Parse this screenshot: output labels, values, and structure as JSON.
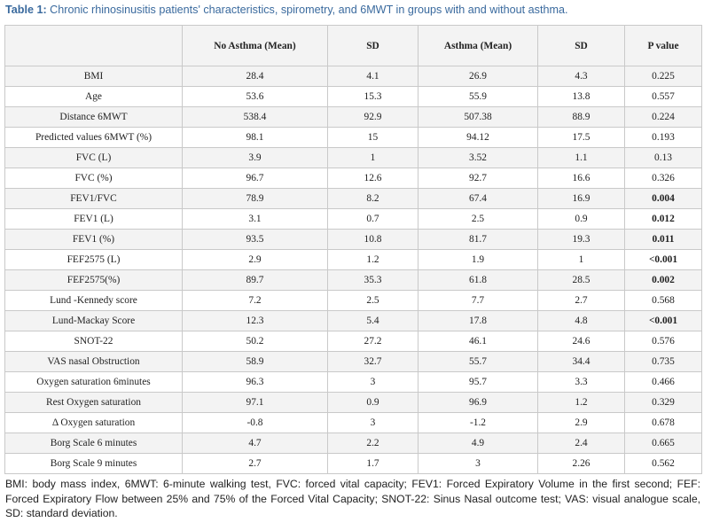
{
  "caption": {
    "label": "Table 1:",
    "text": "Chronic rhinosinusitis patients' characteristics, spirometry, and 6MWT in groups with and without asthma."
  },
  "table": {
    "headers": [
      "",
      "No Asthma (Mean)",
      "SD",
      "Asthma (Mean)",
      "SD",
      "P value"
    ],
    "rows": [
      {
        "cells": [
          "BMI",
          "28.4",
          "4.1",
          "26.9",
          "4.3",
          "0.225"
        ],
        "bold_p": false
      },
      {
        "cells": [
          "Age",
          "53.6",
          "15.3",
          "55.9",
          "13.8",
          "0.557"
        ],
        "bold_p": false
      },
      {
        "cells": [
          "Distance 6MWT",
          "538.4",
          "92.9",
          "507.38",
          "88.9",
          "0.224"
        ],
        "bold_p": false
      },
      {
        "cells": [
          "Predicted values 6MWT (%)",
          "98.1",
          "15",
          "94.12",
          "17.5",
          "0.193"
        ],
        "bold_p": false
      },
      {
        "cells": [
          "FVC (L)",
          "3.9",
          "1",
          "3.52",
          "1.1",
          "0.13"
        ],
        "bold_p": false
      },
      {
        "cells": [
          "FVC (%)",
          "96.7",
          "12.6",
          "92.7",
          "16.6",
          "0.326"
        ],
        "bold_p": false
      },
      {
        "cells": [
          "FEV1/FVC",
          "78.9",
          "8.2",
          "67.4",
          "16.9",
          "0.004"
        ],
        "bold_p": true
      },
      {
        "cells": [
          "FEV1 (L)",
          "3.1",
          "0.7",
          "2.5",
          "0.9",
          "0.012"
        ],
        "bold_p": true
      },
      {
        "cells": [
          "FEV1 (%)",
          "93.5",
          "10.8",
          "81.7",
          "19.3",
          "0.011"
        ],
        "bold_p": true
      },
      {
        "cells": [
          "FEF2575 (L)",
          "2.9",
          "1.2",
          "1.9",
          "1",
          "<0.001"
        ],
        "bold_p": true
      },
      {
        "cells": [
          "FEF2575(%)",
          "89.7",
          "35.3",
          "61.8",
          "28.5",
          "0.002"
        ],
        "bold_p": true
      },
      {
        "cells": [
          "Lund -Kennedy score",
          "7.2",
          "2.5",
          "7.7",
          "2.7",
          "0.568"
        ],
        "bold_p": false
      },
      {
        "cells": [
          "Lund-Mackay Score",
          "12.3",
          "5.4",
          "17.8",
          "4.8",
          "<0.001"
        ],
        "bold_p": true
      },
      {
        "cells": [
          "SNOT-22",
          "50.2",
          "27.2",
          "46.1",
          "24.6",
          "0.576"
        ],
        "bold_p": false
      },
      {
        "cells": [
          "VAS nasal Obstruction",
          "58.9",
          "32.7",
          "55.7",
          "34.4",
          "0.735"
        ],
        "bold_p": false
      },
      {
        "cells": [
          "Oxygen saturation 6minutes",
          "96.3",
          "3",
          "95.7",
          "3.3",
          "0.466"
        ],
        "bold_p": false
      },
      {
        "cells": [
          "Rest Oxygen saturation",
          "97.1",
          "0.9",
          "96.9",
          "1.2",
          "0.329"
        ],
        "bold_p": false
      },
      {
        "cells": [
          "Δ Oxygen saturation",
          "-0.8",
          "3",
          "-1.2",
          "2.9",
          "0.678"
        ],
        "bold_p": false
      },
      {
        "cells": [
          "Borg Scale 6 minutes",
          "4.7",
          "2.2",
          "4.9",
          "2.4",
          "0.665"
        ],
        "bold_p": false
      },
      {
        "cells": [
          "Borg Scale 9 minutes",
          "2.7",
          "1.7",
          "3",
          "2.26",
          "0.562"
        ],
        "bold_p": false
      }
    ]
  },
  "footnote": "BMI: body mass index, 6MWT: 6-minute walking test, FVC: forced vital capacity; FEV1: Forced Expiratory Volume in the first second; FEF: Forced Expiratory Flow between 25% and 75% of the Forced Vital Capacity; SNOT-22: Sinus Nasal outcome test; VAS: visual analogue scale, SD: standard deviation.",
  "colors": {
    "caption": "#3a6a9e",
    "row_shade": "#f3f3f3",
    "border": "#c9c9c9"
  }
}
